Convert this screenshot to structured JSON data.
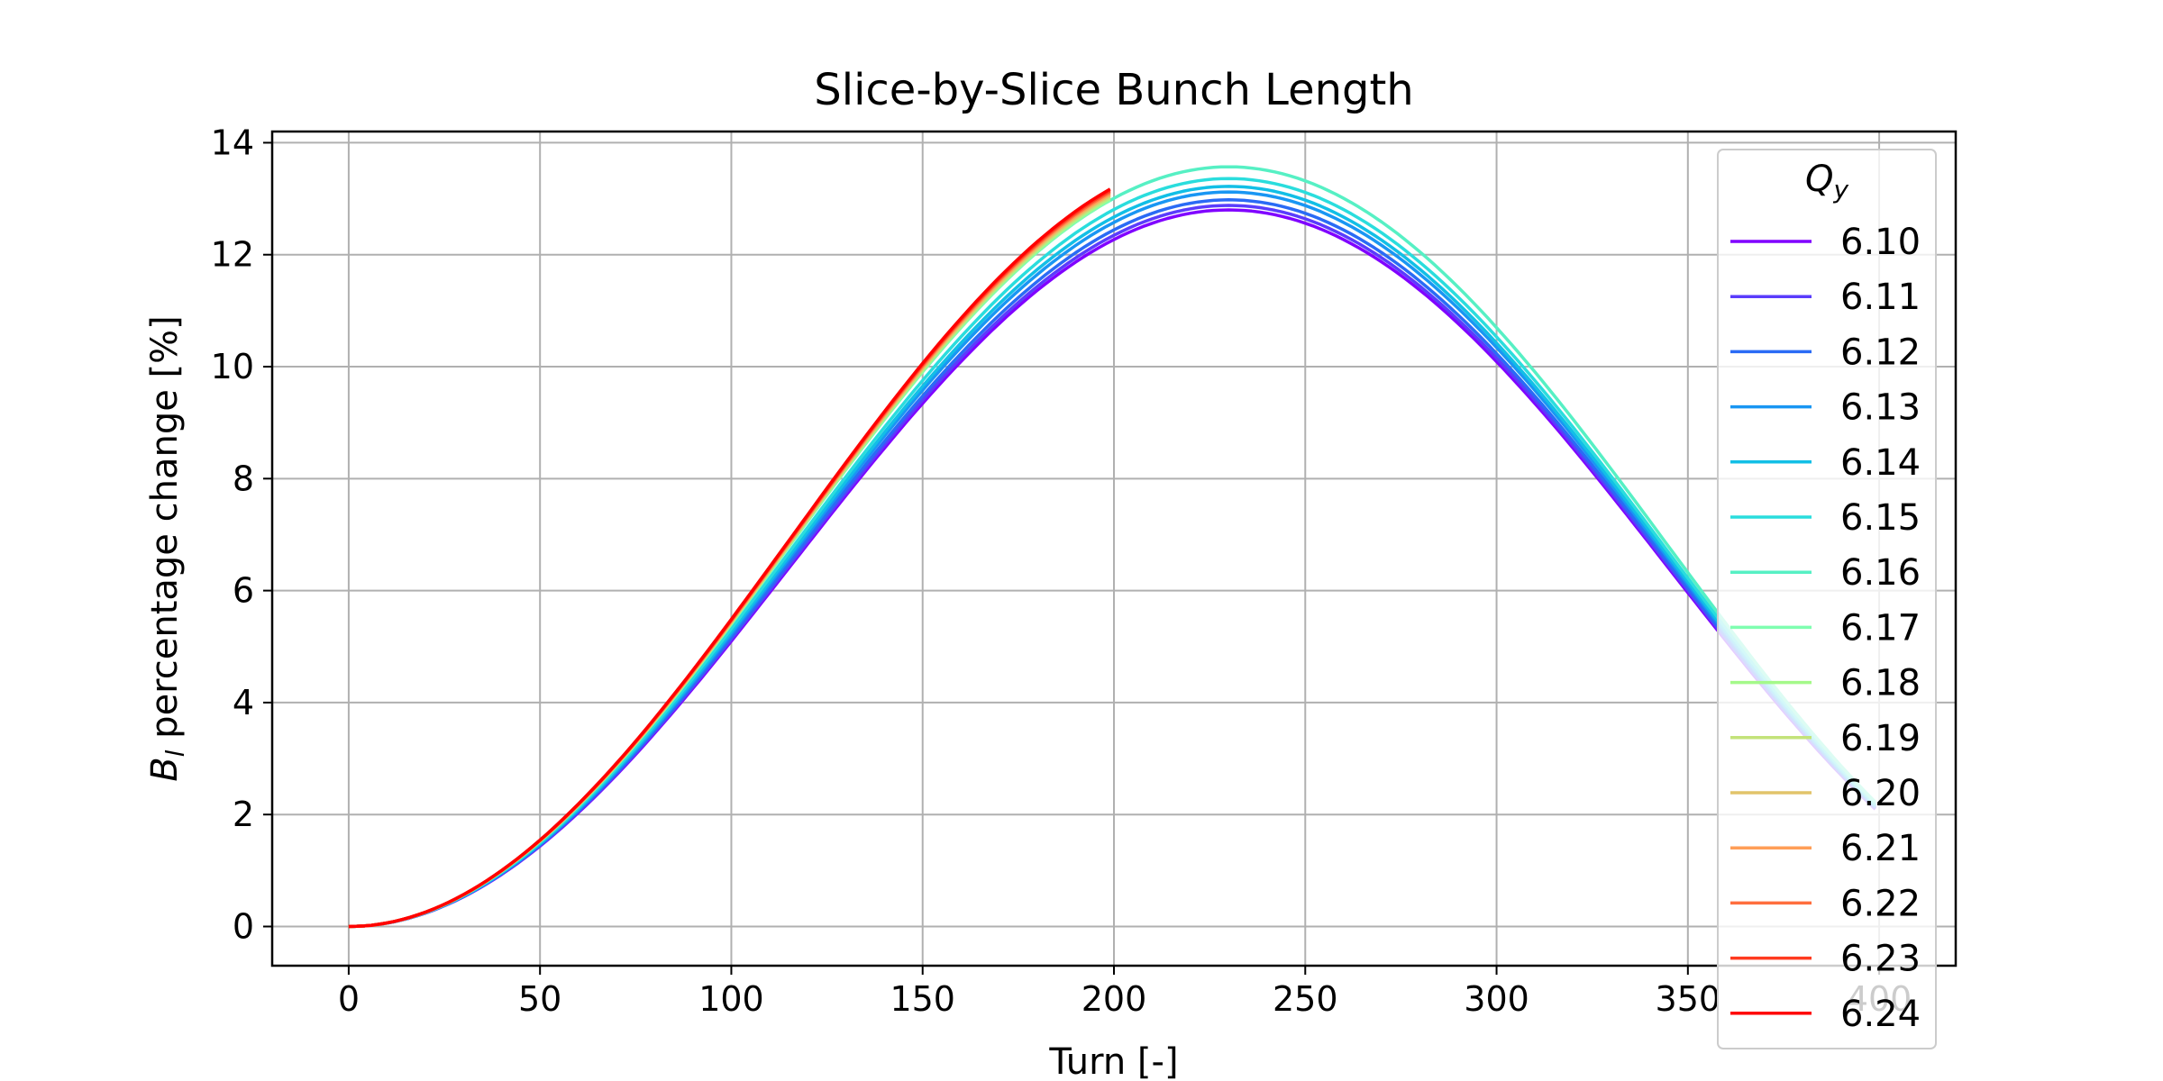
{
  "chart_data": {
    "type": "line",
    "title": "Slice-by-Slice Bunch Length",
    "xlabel": "Turn [-]",
    "ylabel_main": "B",
    "ylabel_sub": "l",
    "ylabel_rest": " percentage change [%]",
    "xlim": [
      -20,
      420
    ],
    "ylim": [
      -0.7,
      14.2
    ],
    "xticks": [
      0,
      50,
      100,
      150,
      200,
      250,
      300,
      350,
      400
    ],
    "yticks": [
      0,
      2,
      4,
      6,
      8,
      10,
      12,
      14
    ],
    "grid": true,
    "legend": {
      "title_main": "Q",
      "title_sub": "y",
      "placement": "right"
    },
    "series": [
      {
        "name": "6.10",
        "color": "#8000ff",
        "peak": 12.8,
        "end_turn": 399
      },
      {
        "name": "6.11",
        "color": "#5a3cfc",
        "peak": 12.88,
        "end_turn": 399
      },
      {
        "name": "6.12",
        "color": "#2a6bf5",
        "peak": 12.98,
        "end_turn": 399
      },
      {
        "name": "6.13",
        "color": "#1996f3",
        "peak": 13.12,
        "end_turn": 399
      },
      {
        "name": "6.14",
        "color": "#12bfe6",
        "peak": 13.22,
        "end_turn": 399
      },
      {
        "name": "6.15",
        "color": "#2adddd",
        "peak": 13.36,
        "end_turn": 399
      },
      {
        "name": "6.16",
        "color": "#56f0c4",
        "peak": 13.57,
        "end_turn": 399
      },
      {
        "name": "6.17",
        "color": "#7ffeb0",
        "peak": 13.57,
        "end_turn": 199
      },
      {
        "name": "6.18",
        "color": "#a4f98a",
        "peak": 13.6,
        "end_turn": 199
      },
      {
        "name": "6.19",
        "color": "#c3e37a",
        "peak": 13.63,
        "end_turn": 199
      },
      {
        "name": "6.20",
        "color": "#e2c46a",
        "peak": 13.66,
        "end_turn": 199
      },
      {
        "name": "6.21",
        "color": "#ff9e57",
        "peak": 13.69,
        "end_turn": 199
      },
      {
        "name": "6.22",
        "color": "#ff6e3e",
        "peak": 13.72,
        "end_turn": 199
      },
      {
        "name": "6.23",
        "color": "#ff3a1f",
        "peak": 13.75,
        "end_turn": 199
      },
      {
        "name": "6.24",
        "color": "#ff0000",
        "peak": 13.78,
        "end_turn": 199
      }
    ]
  }
}
